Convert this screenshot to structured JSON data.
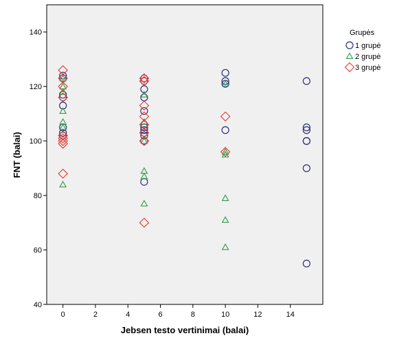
{
  "chart_data": {
    "type": "scatter",
    "title": "",
    "xlabel": "Jebsen testo vertinimai (balai)",
    "ylabel": "FNT (balai)",
    "xlim": [
      -1,
      16
    ],
    "ylim": [
      40,
      150
    ],
    "xticks": [
      0,
      2,
      4,
      6,
      8,
      10,
      12,
      14
    ],
    "yticks": [
      40,
      60,
      80,
      100,
      120,
      140
    ],
    "grid": false,
    "legend": {
      "title": "Grupės",
      "placement": "right"
    },
    "series": [
      {
        "name": "1 grupė",
        "marker": "circle",
        "color": "#2b2f7c",
        "points": [
          [
            0,
            124
          ],
          [
            0,
            123
          ],
          [
            0,
            117
          ],
          [
            0,
            116
          ],
          [
            0,
            113
          ],
          [
            0,
            105
          ],
          [
            0,
            103
          ],
          [
            0,
            102
          ],
          [
            5,
            123
          ],
          [
            5,
            122
          ],
          [
            5,
            119
          ],
          [
            5,
            116
          ],
          [
            5,
            111
          ],
          [
            5,
            106
          ],
          [
            5,
            105
          ],
          [
            5,
            104
          ],
          [
            5,
            103
          ],
          [
            5,
            102
          ],
          [
            5,
            100
          ],
          [
            5,
            85
          ],
          [
            10,
            125
          ],
          [
            10,
            122
          ],
          [
            10,
            121
          ],
          [
            10,
            104
          ],
          [
            15,
            122
          ],
          [
            15,
            105
          ],
          [
            15,
            104
          ],
          [
            15,
            100
          ],
          [
            15,
            100
          ],
          [
            15,
            90
          ],
          [
            15,
            55
          ]
        ]
      },
      {
        "name": "2 grupė",
        "marker": "triangle",
        "color": "#2e9a4a",
        "points": [
          [
            0,
            123
          ],
          [
            0,
            120
          ],
          [
            0,
            118
          ],
          [
            0,
            111
          ],
          [
            0,
            107
          ],
          [
            0,
            105
          ],
          [
            0,
            84
          ],
          [
            5,
            117
          ],
          [
            5,
            107
          ],
          [
            5,
            100
          ],
          [
            5,
            89
          ],
          [
            5,
            87
          ],
          [
            5,
            77
          ],
          [
            10,
            121
          ],
          [
            10,
            96
          ],
          [
            10,
            95
          ],
          [
            10,
            79
          ],
          [
            10,
            71
          ],
          [
            10,
            61
          ]
        ]
      },
      {
        "name": "3 grupė",
        "marker": "diamond",
        "color": "#e8453c",
        "points": [
          [
            0,
            126
          ],
          [
            0,
            123
          ],
          [
            0,
            120
          ],
          [
            0,
            116
          ],
          [
            0,
            102
          ],
          [
            0,
            101
          ],
          [
            0,
            100
          ],
          [
            0,
            99
          ],
          [
            0,
            88
          ],
          [
            5,
            123
          ],
          [
            5,
            122
          ],
          [
            5,
            113
          ],
          [
            5,
            109
          ],
          [
            5,
            106
          ],
          [
            5,
            103
          ],
          [
            5,
            100
          ],
          [
            5,
            70
          ],
          [
            10,
            109
          ],
          [
            10,
            96
          ]
        ]
      }
    ]
  }
}
